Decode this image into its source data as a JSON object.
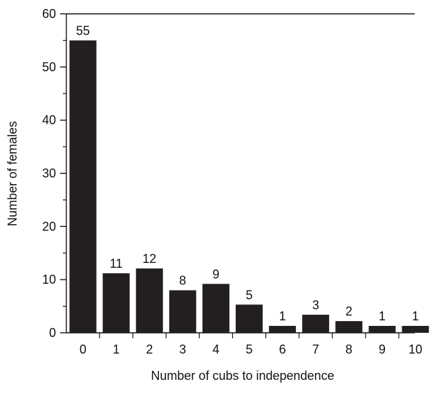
{
  "chart_data": {
    "type": "bar",
    "title": "",
    "xlabel": "Number of cubs to independence",
    "ylabel": "Number of females",
    "categories": [
      "0",
      "1",
      "2",
      "3",
      "4",
      "5",
      "6",
      "7",
      "8",
      "9",
      "10"
    ],
    "values": [
      55,
      11,
      12,
      8,
      9,
      5,
      1,
      3,
      2,
      1,
      1
    ],
    "display_values": [
      55,
      11.2,
      12.1,
      8.0,
      9.2,
      5.3,
      1.3,
      3.4,
      2.2,
      1.3,
      1.3
    ],
    "ylim": [
      0,
      60
    ],
    "yticks": [
      0,
      10,
      20,
      30,
      40,
      50,
      60
    ],
    "grid": false,
    "legend": "none",
    "bar_color": "#231f20"
  }
}
